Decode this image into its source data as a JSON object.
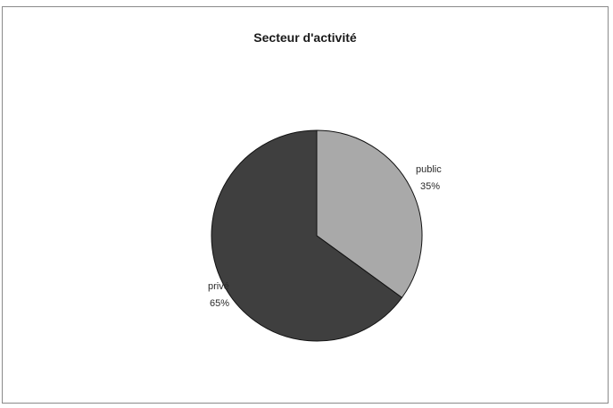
{
  "chart_data": {
    "type": "pie",
    "title": "Secteur d'activité",
    "slices": [
      {
        "label": "public",
        "percent_label": "35%",
        "value": 35,
        "color": "#a9a9a9"
      },
      {
        "label": "privé",
        "percent_label": "65%",
        "value": 65,
        "color": "#3f3f3f"
      }
    ]
  }
}
